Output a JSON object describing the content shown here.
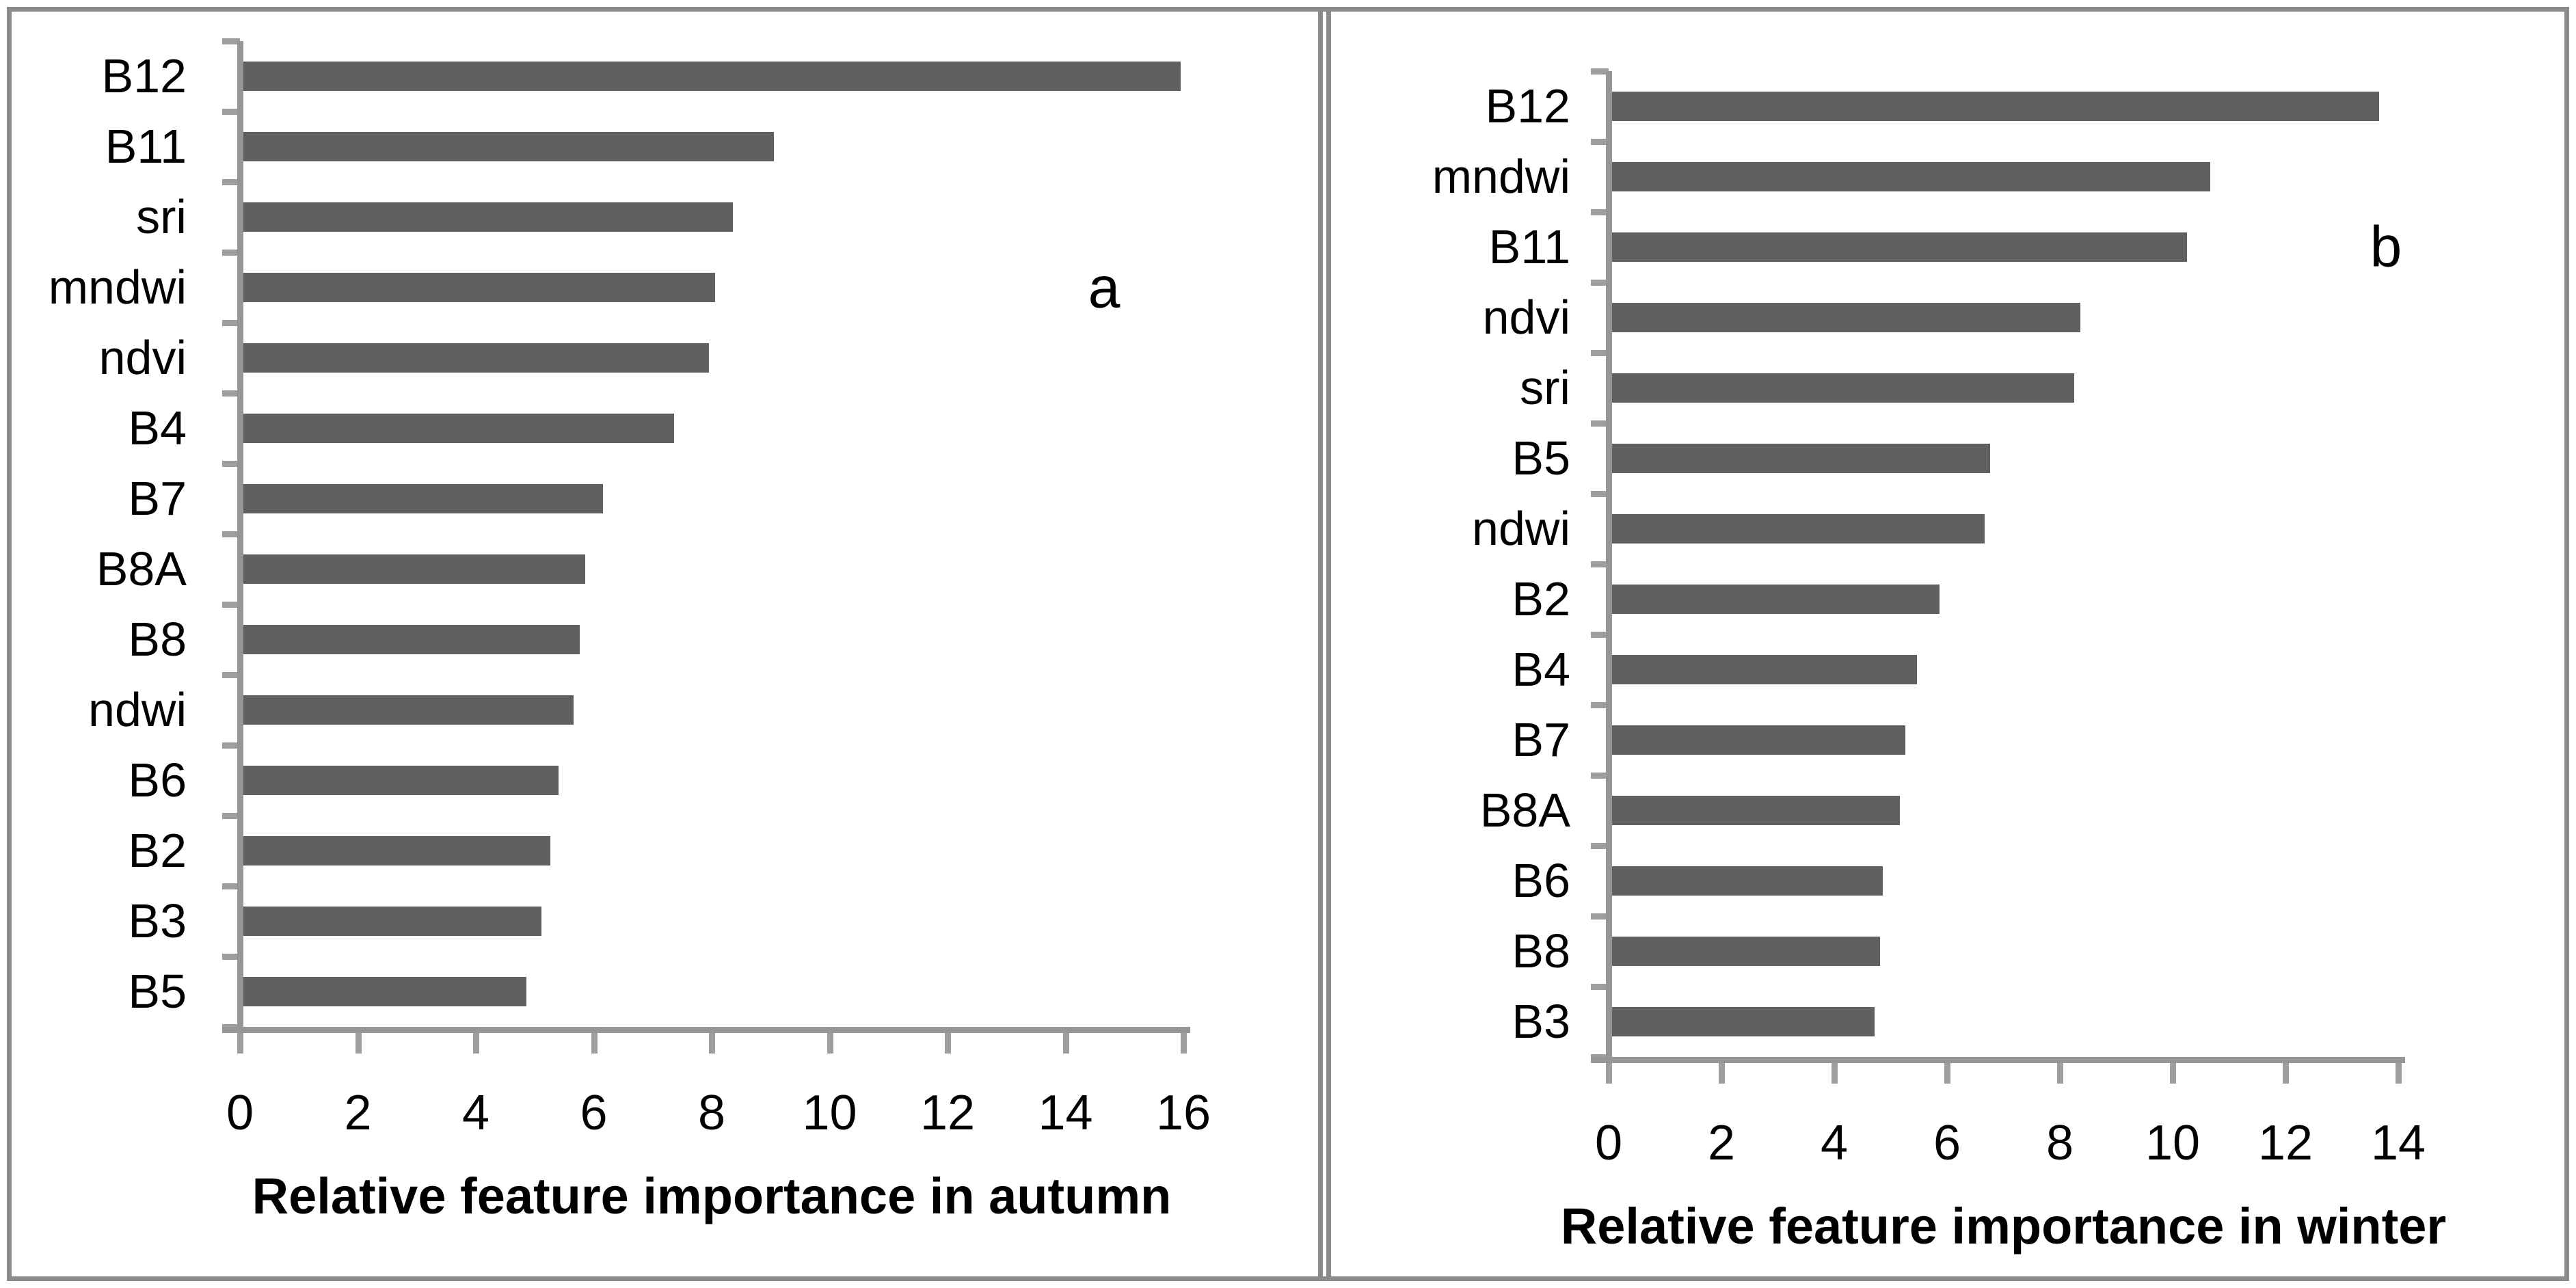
{
  "figure": {
    "panel_letters": [
      "a",
      "b"
    ],
    "colors": {
      "bar": "#606060",
      "axis_line": "#969696",
      "tick": "#9e9e9e",
      "outer_border": "#8c8c8c",
      "text": "#000000",
      "background": "#ffffff"
    }
  },
  "chart_data": [
    {
      "type": "bar",
      "orientation": "horizontal",
      "panel_label": "a",
      "title": "",
      "xlabel": "Relative feature importance in autumn",
      "ylabel": "",
      "categories": [
        "B12",
        "B11",
        "sri",
        "mndwi",
        "ndvi",
        "B4",
        "B7",
        "B8A",
        "B8",
        "ndwi",
        "B6",
        "B2",
        "B3",
        "B5"
      ],
      "values": [
        15.9,
        9.0,
        8.3,
        8.0,
        7.9,
        7.3,
        6.1,
        5.8,
        5.7,
        5.6,
        5.35,
        5.2,
        5.05,
        4.8
      ],
      "xlim": [
        0,
        16
      ],
      "xticks": [
        0,
        2,
        4,
        6,
        8,
        10,
        12,
        14,
        16
      ],
      "grid": false,
      "legend": null
    },
    {
      "type": "bar",
      "orientation": "horizontal",
      "panel_label": "b",
      "title": "",
      "xlabel": "Relative feature importance in winter",
      "ylabel": "",
      "categories": [
        "B12",
        "mndwi",
        "B11",
        "ndvi",
        "sri",
        "B5",
        "ndwi",
        "B2",
        "B4",
        "B7",
        "B8A",
        "B6",
        "B8",
        "B3"
      ],
      "values": [
        13.6,
        10.6,
        10.2,
        8.3,
        8.2,
        6.7,
        6.6,
        5.8,
        5.4,
        5.2,
        5.1,
        4.8,
        4.75,
        4.65
      ],
      "xlim": [
        0,
        14
      ],
      "xticks": [
        0,
        2,
        4,
        6,
        8,
        10,
        12,
        14
      ],
      "grid": false,
      "legend": null
    }
  ]
}
